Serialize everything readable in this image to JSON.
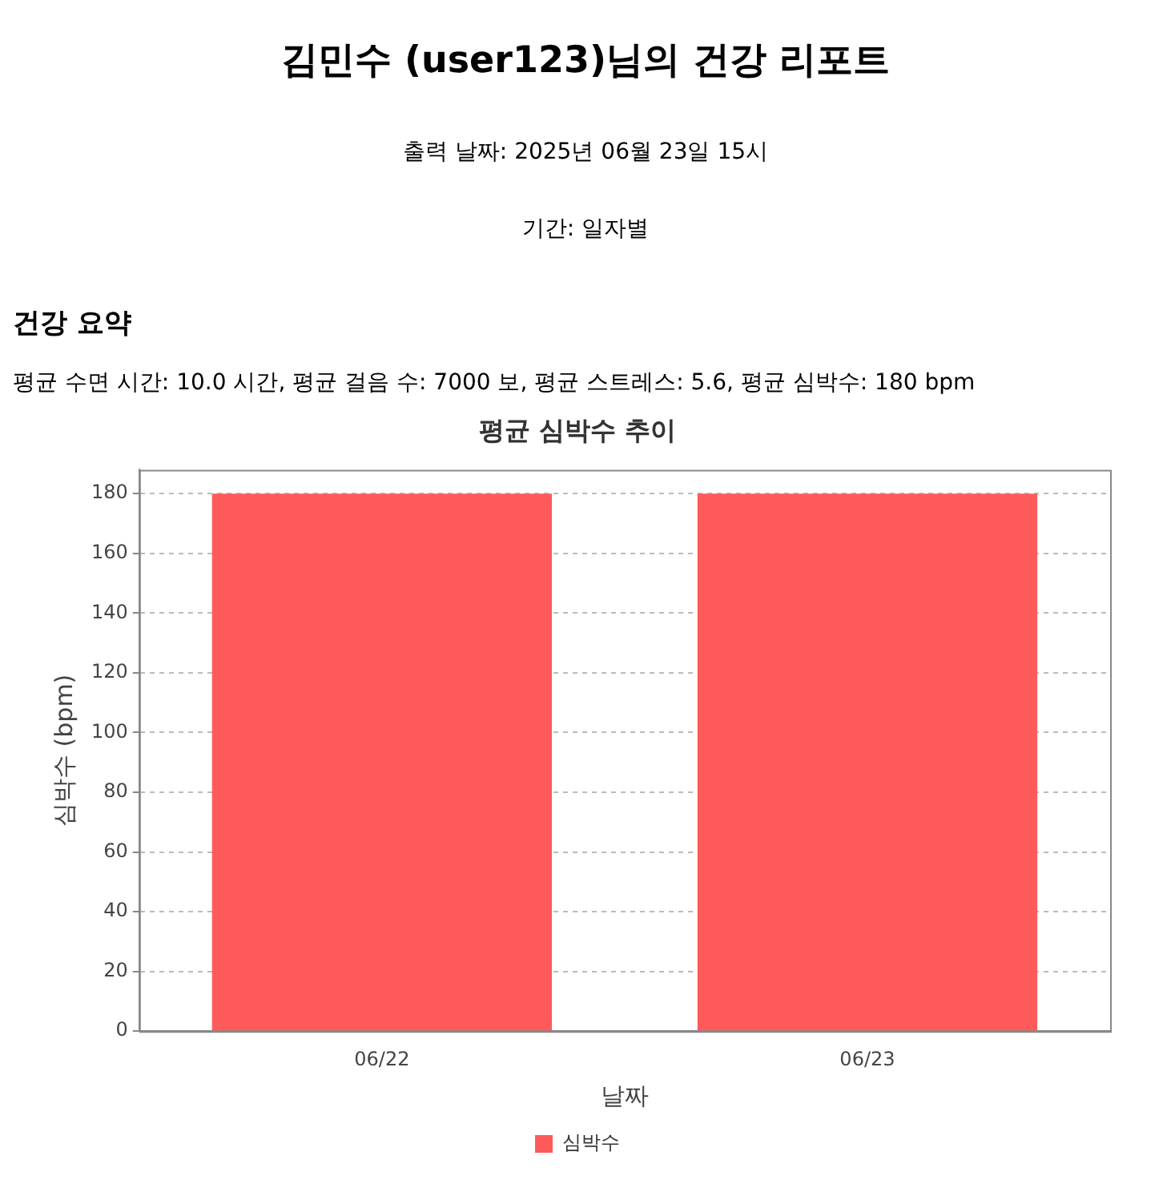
{
  "chart_data": {
    "type": "bar",
    "title": "평균 심박수 추이",
    "annotations": [
      "김민수 (user123)님의 건강 리포트",
      "출력 날짜: 2025년 06월 23일 15시",
      "기간: 일자별",
      "건강 요약",
      "평균 수면 시간: 10.0 시간, 평균 걸음 수: 7000 보, 평균 스트레스: 5.6, 평균 심박수: 180 bpm"
    ],
    "xlabel": "날짜",
    "ylabel": "심박수 (bpm)",
    "categories": [
      "06/22",
      "06/23"
    ],
    "series": [
      {
        "name": "심박수",
        "color": "#ff5a5a",
        "values": [
          180,
          180
        ]
      }
    ],
    "ylim": [
      0,
      188
    ],
    "yticks": [
      0,
      20,
      40,
      60,
      80,
      100,
      120,
      140,
      160,
      180
    ],
    "grid": "y",
    "legend": "bottom"
  }
}
